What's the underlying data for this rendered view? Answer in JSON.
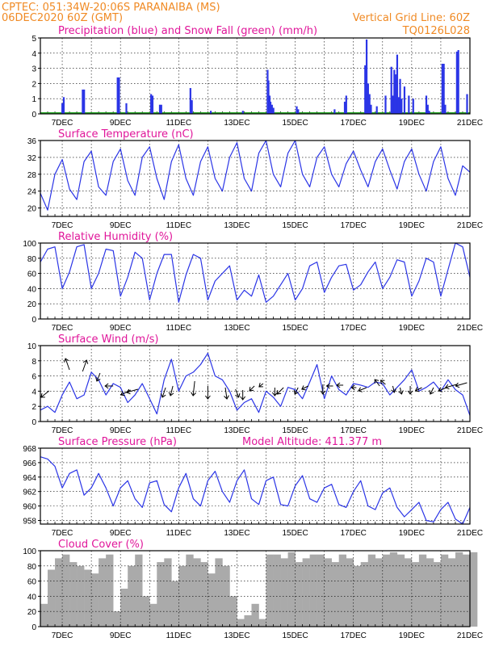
{
  "header": {
    "line1": "CPTEC:   051:34W-20:06S   PARANAIBA (MS)",
    "line2_left": "06DEC2020 60Z (GMT)",
    "line2_right": "Vertical Grid Line: 60Z",
    "code": "TQ0126L028"
  },
  "x_axis": {
    "start_day": 6.25,
    "end_day": 21.0,
    "tick_days": [
      7,
      9,
      11,
      13,
      15,
      17,
      19,
      21
    ],
    "tick_labels": [
      "7DEC",
      "9DEC",
      "11DEC",
      "13DEC",
      "15DEC",
      "17DEC",
      "19DEC",
      "21DEC"
    ]
  },
  "panels": {
    "precip": {
      "title": "Precipitation (blue) and Snow Fall (green) (mm/h)"
    },
    "temp": {
      "title": "Surface Temperature (nC)"
    },
    "rh": {
      "title": "Relative Humidity (%)"
    },
    "wind": {
      "title": "Surface Wind (m/s)"
    },
    "pres": {
      "title": "Surface Pressure (hPa)",
      "extra": "Model Altitude: 411.377 m"
    },
    "cloud": {
      "title": "Cloud Cover (%)"
    }
  },
  "colors": {
    "line": "#2b35e6",
    "precip": "#2b35e6",
    "snow": "#2aa82a",
    "cloud": "#aaaaaa",
    "title": "#e0169a",
    "header": "#f08a24"
  },
  "chart_data": [
    {
      "type": "bar",
      "title": "Precipitation (blue) and Snow Fall (green) (mm/h)",
      "ylim": [
        0,
        5
      ],
      "yticks": [
        0,
        1,
        2,
        3,
        4,
        5
      ],
      "x": [
        7.0,
        7.05,
        7.7,
        7.75,
        8.9,
        8.95,
        9.2,
        10.05,
        10.1,
        10.35,
        10.4,
        11.4,
        11.45,
        12.1,
        13.2,
        14.05,
        14.08,
        14.12,
        14.15,
        14.2,
        14.25,
        15.05,
        15.1,
        16.35,
        16.7,
        16.75,
        17.4,
        17.45,
        17.5,
        17.55,
        17.6,
        17.8,
        18.1,
        18.3,
        18.35,
        18.4,
        18.45,
        18.5,
        18.55,
        18.6,
        18.65,
        18.75,
        18.9,
        19.05,
        19.5,
        19.55,
        19.6,
        20.05,
        20.1,
        20.15,
        20.55,
        20.6,
        20.9
      ],
      "values": [
        0.7,
        1.1,
        1.6,
        1.6,
        2.4,
        2.4,
        0.7,
        1.3,
        1.2,
        0.6,
        0.6,
        1.7,
        0.9,
        0.2,
        0.2,
        2.9,
        2.2,
        1.2,
        0.8,
        0.6,
        0.4,
        0.5,
        0.3,
        0.3,
        0.8,
        1.2,
        3.2,
        4.9,
        2.0,
        1.3,
        0.6,
        0.5,
        1.2,
        3.1,
        1.2,
        2.9,
        2.6,
        3.9,
        1.1,
        2.3,
        1.0,
        1.8,
        1.2,
        1.0,
        1.2,
        0.6,
        0.2,
        3.3,
        3.3,
        0.6,
        4.1,
        4.2,
        1.3
      ]
    },
    {
      "type": "line",
      "title": "Surface Temperature (nC)",
      "ylim": [
        18,
        36
      ],
      "yticks": [
        20,
        24,
        28,
        32,
        36
      ],
      "x": [
        6.25,
        6.5,
        6.75,
        7.0,
        7.25,
        7.5,
        7.75,
        8.0,
        8.25,
        8.5,
        8.75,
        9.0,
        9.25,
        9.5,
        9.75,
        10.0,
        10.25,
        10.5,
        10.75,
        11.0,
        11.25,
        11.5,
        11.75,
        12.0,
        12.25,
        12.5,
        12.75,
        13.0,
        13.25,
        13.5,
        13.75,
        14.0,
        14.25,
        14.5,
        14.75,
        15.0,
        15.25,
        15.5,
        15.75,
        16.0,
        16.25,
        16.5,
        16.75,
        17.0,
        17.25,
        17.5,
        17.75,
        18.0,
        18.25,
        18.5,
        18.75,
        19.0,
        19.25,
        19.5,
        19.75,
        20.0,
        20.25,
        20.5,
        20.75,
        21.0
      ],
      "y": [
        23.5,
        19.5,
        28,
        31.5,
        24.5,
        22,
        31,
        33.5,
        25,
        23,
        31,
        34,
        26.5,
        23,
        32,
        34.5,
        27,
        22,
        31,
        35,
        27,
        23,
        31,
        34.5,
        27,
        24,
        32,
        35.5,
        27,
        24,
        33,
        36,
        28,
        25,
        33,
        36,
        28,
        25,
        32,
        34.5,
        28,
        25,
        30.5,
        33.5,
        29,
        25,
        31,
        34,
        29,
        24.5,
        31,
        34,
        28,
        24,
        31,
        34.5,
        27,
        23,
        30,
        28.5
      ]
    },
    {
      "type": "line",
      "title": "Relative Humidity (%)",
      "ylim": [
        0,
        100
      ],
      "yticks": [
        0,
        20,
        40,
        60,
        80,
        100
      ],
      "x": [
        6.25,
        6.5,
        6.75,
        7.0,
        7.25,
        7.5,
        7.75,
        8.0,
        8.25,
        8.5,
        8.75,
        9.0,
        9.25,
        9.5,
        9.75,
        10.0,
        10.25,
        10.5,
        10.75,
        11.0,
        11.25,
        11.5,
        11.75,
        12.0,
        12.25,
        12.5,
        12.75,
        13.0,
        13.25,
        13.5,
        13.75,
        14.0,
        14.25,
        14.5,
        14.75,
        15.0,
        15.25,
        15.5,
        15.75,
        16.0,
        16.25,
        16.5,
        16.75,
        17.0,
        17.25,
        17.5,
        17.75,
        18.0,
        18.25,
        18.5,
        18.75,
        19.0,
        19.25,
        19.5,
        19.75,
        20.0,
        20.25,
        20.5,
        20.75,
        21.0
      ],
      "y": [
        75,
        92,
        95,
        40,
        62,
        95,
        98,
        40,
        60,
        92,
        90,
        30,
        55,
        88,
        80,
        25,
        60,
        85,
        85,
        22,
        58,
        85,
        80,
        25,
        50,
        60,
        70,
        25,
        38,
        30,
        58,
        22,
        30,
        45,
        60,
        25,
        40,
        70,
        75,
        35,
        55,
        70,
        72,
        38,
        45,
        62,
        75,
        40,
        55,
        78,
        75,
        30,
        50,
        80,
        75,
        30,
        65,
        100,
        95,
        55
      ]
    },
    {
      "type": "line",
      "title": "Surface Wind (m/s)",
      "ylim": [
        0,
        10
      ],
      "yticks": [
        0,
        2,
        4,
        6,
        8,
        10
      ],
      "x": [
        6.25,
        6.5,
        6.75,
        7.0,
        7.25,
        7.5,
        7.75,
        8.0,
        8.25,
        8.5,
        8.75,
        9.0,
        9.25,
        9.5,
        9.75,
        10.0,
        10.25,
        10.5,
        10.75,
        11.0,
        11.25,
        11.5,
        11.75,
        12.0,
        12.25,
        12.5,
        12.75,
        13.0,
        13.25,
        13.5,
        13.75,
        14.0,
        14.25,
        14.5,
        14.75,
        15.0,
        15.25,
        15.5,
        15.75,
        16.0,
        16.25,
        16.5,
        16.75,
        17.0,
        17.25,
        17.5,
        17.75,
        18.0,
        18.25,
        18.5,
        18.75,
        19.0,
        19.25,
        19.5,
        19.75,
        20.0,
        20.25,
        20.5,
        20.75,
        21.0
      ],
      "y": [
        1.5,
        2,
        1.2,
        3.5,
        5.2,
        3,
        3.5,
        6.5,
        5.5,
        3.5,
        5,
        4.5,
        2.5,
        3.5,
        5,
        3,
        1,
        5.5,
        8.2,
        4,
        6,
        6.5,
        7.5,
        9,
        6,
        5.5,
        4,
        1.5,
        2.5,
        3,
        1.2,
        4,
        3.2,
        2,
        4.5,
        4.2,
        3,
        5.2,
        7.5,
        3,
        6,
        4.2,
        3.5,
        5,
        4.8,
        4.5,
        5.2,
        5,
        3.5,
        4.5,
        5.5,
        6.8,
        4,
        4.5,
        5.2,
        4,
        5.5,
        4.2,
        3.5,
        0.8
      ]
    },
    {
      "type": "line",
      "title": "Surface Pressure (hPa)",
      "ylim": [
        957.5,
        968
      ],
      "yticks": [
        958,
        960,
        962,
        964,
        966,
        968
      ],
      "x": [
        6.25,
        6.5,
        6.75,
        7.0,
        7.25,
        7.5,
        7.75,
        8.0,
        8.25,
        8.5,
        8.75,
        9.0,
        9.25,
        9.5,
        9.75,
        10.0,
        10.25,
        10.5,
        10.75,
        11.0,
        11.25,
        11.5,
        11.75,
        12.0,
        12.25,
        12.5,
        12.75,
        13.0,
        13.25,
        13.5,
        13.75,
        14.0,
        14.25,
        14.5,
        14.75,
        15.0,
        15.25,
        15.5,
        15.75,
        16.0,
        16.25,
        16.5,
        16.75,
        17.0,
        17.25,
        17.5,
        17.75,
        18.0,
        18.25,
        18.5,
        18.75,
        19.0,
        19.25,
        19.5,
        19.75,
        20.0,
        20.25,
        20.5,
        20.75,
        21.0
      ],
      "y": [
        966.8,
        966.5,
        965.5,
        962.5,
        964.5,
        965,
        961.5,
        962.5,
        964.5,
        962.5,
        960,
        962.5,
        963.5,
        961,
        959.8,
        963.2,
        963.5,
        960.2,
        959.2,
        962.5,
        964.5,
        961,
        960,
        963.5,
        964.8,
        962,
        960.5,
        963.5,
        965,
        961,
        960.2,
        963.5,
        964,
        960.2,
        960,
        962.8,
        964.2,
        961,
        960.5,
        962.5,
        963,
        960.2,
        959.8,
        962,
        963.5,
        960,
        959.5,
        961.8,
        962.5,
        959.8,
        958.5,
        959.5,
        960.5,
        958,
        957.8,
        959.5,
        960.5,
        958.2,
        957.5,
        959.8
      ]
    },
    {
      "type": "bar",
      "title": "Cloud Cover (%)",
      "ylim": [
        0,
        100
      ],
      "yticks": [
        0,
        20,
        40,
        60,
        80,
        100
      ],
      "x": [
        6.25,
        6.5,
        6.75,
        7.0,
        7.25,
        7.5,
        7.75,
        8.0,
        8.25,
        8.5,
        8.75,
        9.0,
        9.25,
        9.5,
        9.75,
        10.0,
        10.25,
        10.5,
        10.75,
        11.0,
        11.25,
        11.5,
        11.75,
        12.0,
        12.25,
        12.5,
        12.75,
        13.0,
        13.25,
        13.5,
        13.75,
        14.0,
        14.25,
        14.5,
        14.75,
        15.0,
        15.25,
        15.5,
        15.75,
        16.0,
        16.25,
        16.5,
        16.75,
        17.0,
        17.25,
        17.5,
        17.75,
        18.0,
        18.25,
        18.5,
        18.75,
        19.0,
        19.25,
        19.5,
        19.75,
        20.0,
        20.25,
        20.5,
        20.75,
        21.0
      ],
      "values": [
        30,
        75,
        90,
        95,
        85,
        80,
        75,
        70,
        90,
        95,
        20,
        50,
        80,
        95,
        40,
        30,
        85,
        90,
        60,
        80,
        95,
        90,
        85,
        70,
        90,
        80,
        40,
        10,
        15,
        30,
        10,
        95,
        95,
        90,
        98,
        85,
        90,
        95,
        95,
        90,
        85,
        95,
        90,
        80,
        85,
        95,
        90,
        95,
        98,
        95,
        90,
        85,
        95,
        90,
        85,
        95,
        90,
        98,
        95,
        98
      ]
    }
  ]
}
